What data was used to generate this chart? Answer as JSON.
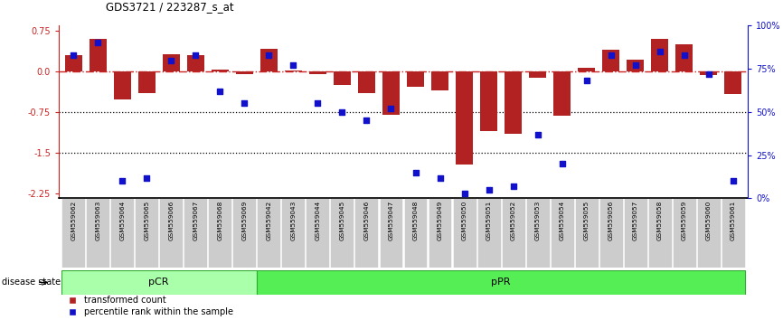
{
  "title": "GDS3721 / 223287_s_at",
  "samples": [
    "GSM559062",
    "GSM559063",
    "GSM559064",
    "GSM559065",
    "GSM559066",
    "GSM559067",
    "GSM559068",
    "GSM559069",
    "GSM559042",
    "GSM559043",
    "GSM559044",
    "GSM559045",
    "GSM559046",
    "GSM559047",
    "GSM559048",
    "GSM559049",
    "GSM559050",
    "GSM559051",
    "GSM559052",
    "GSM559053",
    "GSM559054",
    "GSM559055",
    "GSM559056",
    "GSM559057",
    "GSM559058",
    "GSM559059",
    "GSM559060",
    "GSM559061"
  ],
  "transformed_count": [
    0.3,
    0.6,
    -0.52,
    -0.4,
    0.32,
    0.3,
    0.03,
    -0.05,
    0.42,
    0.02,
    -0.05,
    -0.25,
    -0.4,
    -0.8,
    -0.28,
    -0.35,
    -1.72,
    -1.1,
    -1.15,
    -0.12,
    -0.82,
    0.07,
    0.4,
    0.22,
    0.6,
    0.5,
    -0.07,
    -0.42
  ],
  "percentile_rank": [
    83,
    90,
    10,
    12,
    80,
    83,
    62,
    55,
    83,
    77,
    55,
    50,
    45,
    52,
    15,
    12,
    3,
    5,
    7,
    37,
    20,
    68,
    83,
    77,
    85,
    83,
    72,
    10
  ],
  "group_pCR_count": 8,
  "ylim_left": [
    -2.35,
    0.85
  ],
  "ylim_right": [
    0,
    100
  ],
  "yticks_left": [
    0.75,
    0.0,
    -0.75,
    -1.5,
    -2.25
  ],
  "yticks_right": [
    100,
    75,
    50,
    25,
    0
  ],
  "bar_color": "#b22222",
  "dot_color": "#1111cc",
  "zero_line_color": "#cc2222",
  "grid_line_color": "#000000",
  "pCR_color": "#aaffaa",
  "pPR_color": "#55ee55",
  "label_bar": "transformed count",
  "label_dot": "percentile rank within the sample",
  "bg_color": "#ffffff",
  "xticklabel_bg": "#cccccc"
}
